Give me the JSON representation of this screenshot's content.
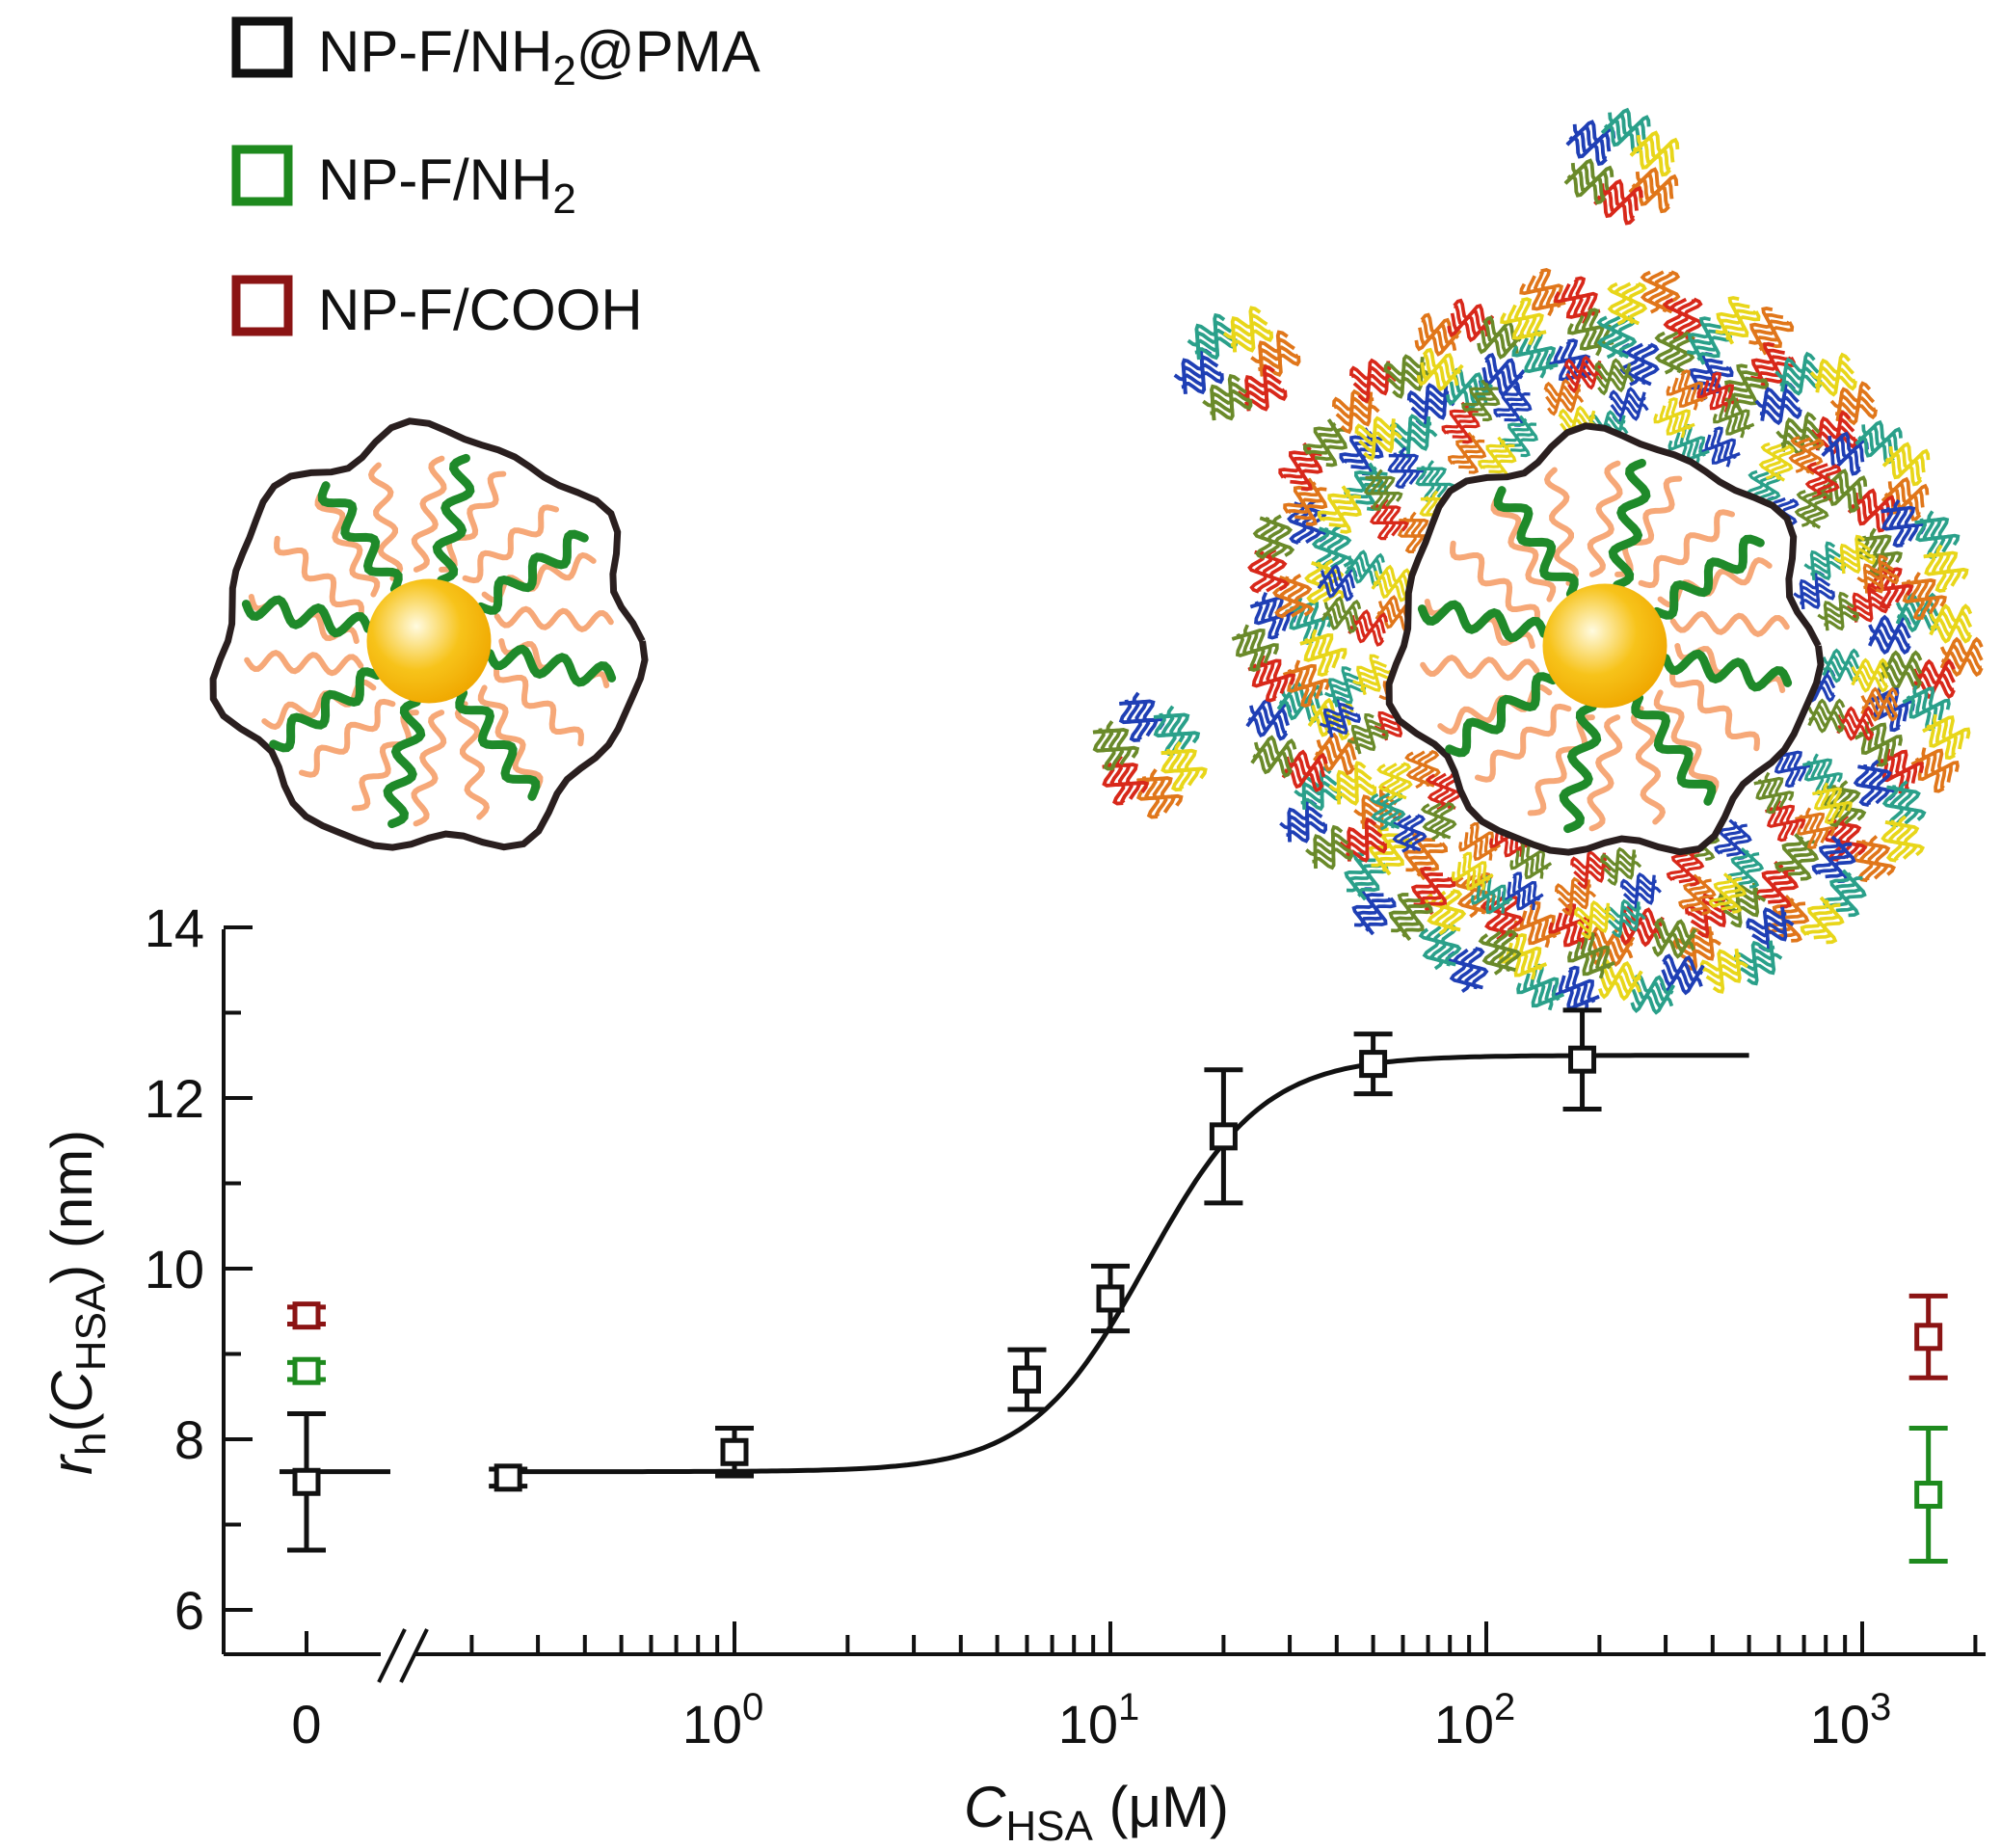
{
  "legend": {
    "position": "top-left",
    "items": [
      {
        "label": "NP-F/NH",
        "sub": "2",
        "suffix": "@PMA",
        "color": "#111111"
      },
      {
        "label": "NP-F/NH",
        "sub": "2",
        "suffix": "",
        "color": "#1e8a1e"
      },
      {
        "label": "NP-F/COOH",
        "sub": "",
        "suffix": "",
        "color": "#8b1414"
      }
    ]
  },
  "colors": {
    "axis": "#111111",
    "pma": "#111111",
    "nh2": "#1e8a1e",
    "cooh": "#8b1414",
    "core_gold": "#f7c31a",
    "polymer_orange": "#f6a878",
    "polymer_green": "#1f8a2a"
  },
  "illustrations": {
    "left": "nanoparticle-without-protein-corona",
    "right": "nanoparticle-with-HSA-protein-corona"
  },
  "chart_data": {
    "type": "scatter",
    "xlabel": {
      "main": "C",
      "sub": "HSA",
      "unit": "(μM)"
    },
    "ylabel": {
      "r": "r",
      "r_sub": "h",
      "c": "C",
      "c_sub": "HSA",
      "unit": "(nm)"
    },
    "xscale": "log with broken axis and zero category",
    "xlim_log": [
      -0.6,
      3.3
    ],
    "ylim": [
      6,
      14
    ],
    "y_ticks": [
      6,
      8,
      10,
      12,
      14
    ],
    "x_zero_label": "0",
    "x_tick_labels": [
      {
        "base": "10",
        "exp": "0",
        "value": 1
      },
      {
        "base": "10",
        "exp": "1",
        "value": 10
      },
      {
        "base": "10",
        "exp": "2",
        "value": 100
      },
      {
        "base": "10",
        "exp": "3",
        "value": 1000
      }
    ],
    "series": [
      {
        "name": "NP-F/NH2@PMA",
        "color": "#111111",
        "zero_point": {
          "y": 7.5,
          "err": 0.8
        },
        "points": [
          {
            "x": 0.25,
            "y": 7.55,
            "err": 0.1
          },
          {
            "x": 1,
            "y": 7.85,
            "err": 0.28
          },
          {
            "x": 6,
            "y": 8.7,
            "err": 0.35
          },
          {
            "x": 10,
            "y": 9.65,
            "err": 0.38
          },
          {
            "x": 20,
            "y": 11.55,
            "err": 0.78
          },
          {
            "x": 50,
            "y": 12.4,
            "err": 0.35
          },
          {
            "x": 180,
            "y": 12.45,
            "err": 0.58
          }
        ],
        "fit": {
          "model": "Hill",
          "r0": 7.62,
          "r_max": 12.5,
          "K": 12.5,
          "n": 2.8,
          "x_range": [
            0.25,
            500
          ]
        }
      },
      {
        "name": "NP-F/NH2",
        "color": "#1e8a1e",
        "zero_point": {
          "y": 8.8,
          "err": 0.1
        },
        "points": [
          {
            "x": 1500,
            "y": 7.35,
            "err": 0.78
          }
        ]
      },
      {
        "name": "NP-F/COOH",
        "color": "#8b1414",
        "zero_point": {
          "y": 9.45,
          "err": 0.1
        },
        "points": [
          {
            "x": 1500,
            "y": 9.2,
            "err": 0.48
          }
        ]
      }
    ]
  }
}
